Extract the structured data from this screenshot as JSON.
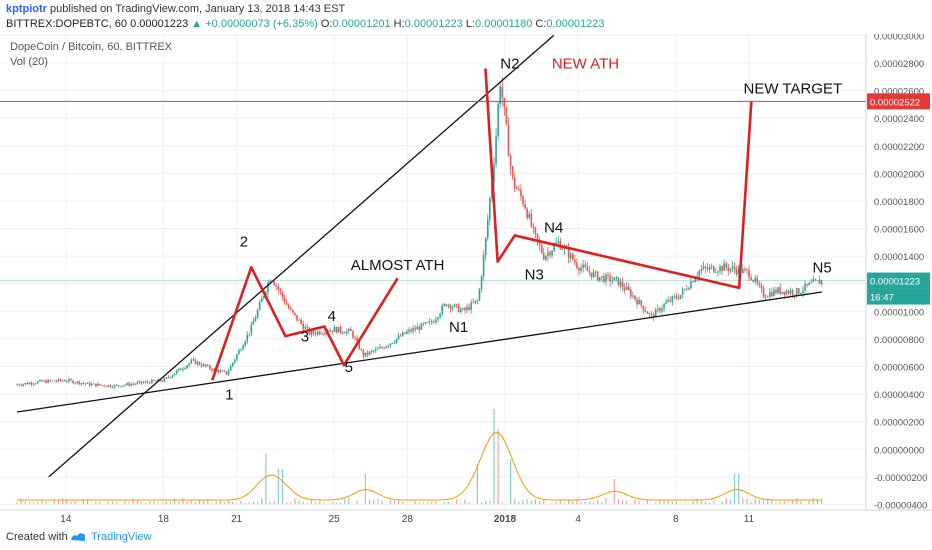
{
  "header": {
    "author": "kptpiotr",
    "published_text": "published on TradingView.com, January 13, 2018 14:43 EST",
    "symbol_line": "BITTREX:DOPEBTC, 60",
    "last_price": "0.00001223",
    "change": "+0.00000073 (+6.35%)",
    "open_label": "O:",
    "open": "0.00001201",
    "high_label": "H:",
    "high": "0.00001223",
    "low_label": "L:",
    "low": "0.00001180",
    "close_label": "C:",
    "close": "0.00001223"
  },
  "chart_title": "DopeCoin / Bitcoin, 60, BITTREX",
  "volume_label": "Vol (20)",
  "footer": {
    "created_with": "Created with",
    "brand": "TradingView"
  },
  "colors": {
    "annotation_red": "#e01e1e",
    "up_candle": "#26a69a",
    "down_candle": "#ef5350",
    "volume_ma": "#ff9800",
    "target_line": "#e53935",
    "price_tag": "#26a69a"
  },
  "chart_data": {
    "type": "candlestick",
    "title": "DopeCoin / Bitcoin, 60, BITTREX",
    "x_ticks": [
      "14",
      "18",
      "21",
      "25",
      "28",
      "2018",
      "4",
      "8",
      "11"
    ],
    "y_ticks": [
      "0.00003000",
      "0.00002800",
      "0.00002600",
      "0.00002400",
      "0.00002200",
      "0.00002000",
      "0.00001800",
      "0.00001600",
      "0.00001400",
      "0.00001200",
      "0.00001000",
      "0.00000800",
      "0.00000600",
      "0.00000400",
      "0.00000200",
      "0.00000000",
      "-0.00000200",
      "-0.00000400"
    ],
    "y_range": [
      -4.4e-06,
      3.01e-05
    ],
    "price_path": [
      {
        "d": 12.0,
        "p": 4.7e-06
      },
      {
        "d": 13.0,
        "p": 4.9e-06
      },
      {
        "d": 14.0,
        "p": 5e-06
      },
      {
        "d": 15.0,
        "p": 4.7e-06
      },
      {
        "d": 16.0,
        "p": 4.6e-06
      },
      {
        "d": 17.0,
        "p": 4.8e-06
      },
      {
        "d": 18.0,
        "p": 5e-06
      },
      {
        "d": 18.6,
        "p": 5.7e-06
      },
      {
        "d": 19.2,
        "p": 6.4e-06
      },
      {
        "d": 20.0,
        "p": 5.8e-06
      },
      {
        "d": 20.6,
        "p": 5.5e-06
      },
      {
        "d": 21.6,
        "p": 8.8e-06
      },
      {
        "d": 22.4,
        "p": 1.26e-05
      },
      {
        "d": 23.2,
        "p": 1e-05
      },
      {
        "d": 24.0,
        "p": 8.4e-06
      },
      {
        "d": 25.0,
        "p": 8.7e-06
      },
      {
        "d": 25.7,
        "p": 8.5e-06
      },
      {
        "d": 26.2,
        "p": 6.8e-06
      },
      {
        "d": 27.0,
        "p": 7.4e-06
      },
      {
        "d": 28.0,
        "p": 8.5e-06
      },
      {
        "d": 29.0,
        "p": 9.2e-06
      },
      {
        "d": 29.6,
        "p": 1.06e-05
      },
      {
        "d": 30.3,
        "p": 1e-05
      },
      {
        "d": 30.9,
        "p": 1.08e-05
      },
      {
        "d": 31.2,
        "p": 1.5e-05
      },
      {
        "d": 31.6,
        "p": 2.2e-05
      },
      {
        "d": 31.8,
        "p": 2.68e-05
      },
      {
        "d": 32.3,
        "p": 1.95e-05
      },
      {
        "d": 32.8,
        "p": 1.78e-05
      },
      {
        "d": 33.2,
        "p": 1.55e-05
      },
      {
        "d": 33.6,
        "p": 1.4e-05
      },
      {
        "d": 34.2,
        "p": 1.5e-05
      },
      {
        "d": 35.0,
        "p": 1.33e-05
      },
      {
        "d": 35.8,
        "p": 1.25e-05
      },
      {
        "d": 36.6,
        "p": 1.22e-05
      },
      {
        "d": 37.2,
        "p": 1.12e-05
      },
      {
        "d": 38.0,
        "p": 9.6e-06
      },
      {
        "d": 38.6,
        "p": 1.06e-05
      },
      {
        "d": 39.2,
        "p": 1.12e-05
      },
      {
        "d": 40.0,
        "p": 1.3e-05
      },
      {
        "d": 41.0,
        "p": 1.32e-05
      },
      {
        "d": 42.0,
        "p": 1.28e-05
      },
      {
        "d": 42.6,
        "p": 1.12e-05
      },
      {
        "d": 43.2,
        "p": 1.15e-05
      },
      {
        "d": 44.0,
        "p": 1.14e-05
      },
      {
        "d": 44.6,
        "p": 1.2e-05
      },
      {
        "d": 45.0,
        "p": 1.22e-05
      }
    ],
    "volume_hint": "spikes near Dec 22, Dec 26, Dec 31 and Jan 1",
    "annotations": {
      "wave_labels": [
        {
          "text": "1",
          "d": 20.7,
          "p": 3.6e-06
        },
        {
          "text": "2",
          "d": 21.3,
          "p": 1.47e-05
        },
        {
          "text": "3",
          "d": 23.8,
          "p": 7.8e-06
        },
        {
          "text": "4",
          "d": 24.9,
          "p": 9.3e-06
        },
        {
          "text": "5",
          "d": 25.6,
          "p": 5.6e-06
        },
        {
          "text": "N1",
          "d": 30.1,
          "p": 8.5e-06
        },
        {
          "text": "N2",
          "d": 32.2,
          "p": 2.76e-05
        },
        {
          "text": "N3",
          "d": 33.2,
          "p": 1.23e-05
        },
        {
          "text": "N4",
          "d": 34.0,
          "p": 1.57e-05
        },
        {
          "text": "N5",
          "d": 45.0,
          "p": 1.28e-05
        }
      ],
      "notes": [
        {
          "text": "ALMOST ATH",
          "d": 27.6,
          "p": 1.3e-05
        },
        {
          "text": "NEW ATH",
          "d": 35.3,
          "p": 2.76e-05
        },
        {
          "text": "NEW TARGET",
          "d": 43.8,
          "p": 2.58e-05
        }
      ],
      "target_level": {
        "value": 2.522e-05,
        "tag": "0.00002522"
      },
      "current_tag": {
        "value": 1.223e-05,
        "tag": "0.00001223"
      },
      "countdown_tag": "16:47",
      "wave_polyline": [
        {
          "d": 20.0,
          "p": 5e-06
        },
        {
          "d": 21.6,
          "p": 1.32e-05
        },
        {
          "d": 23.0,
          "p": 8.2e-06
        },
        {
          "d": 24.6,
          "p": 8.9e-06
        },
        {
          "d": 25.4,
          "p": 6.1e-06
        },
        {
          "d": 27.6,
          "p": 1.24e-05
        }
      ],
      "wave_polyline_2": [
        {
          "d": 31.2,
          "p": 2.76e-05
        },
        {
          "d": 31.7,
          "p": 1.36e-05
        },
        {
          "d": 32.4,
          "p": 1.55e-05
        },
        {
          "d": 41.6,
          "p": 1.17e-05
        },
        {
          "d": 42.1,
          "p": 2.52e-05
        }
      ],
      "trend_lines": [
        {
          "name": "upper",
          "from": {
            "d": 13.3,
            "p": -2e-06
          },
          "to": {
            "d": 34.0,
            "p": 3e-05
          }
        },
        {
          "name": "lower",
          "from": {
            "d": 12.0,
            "p": 2.7e-06
          },
          "to": {
            "d": 45.0,
            "p": 1.14e-05
          }
        }
      ]
    }
  }
}
